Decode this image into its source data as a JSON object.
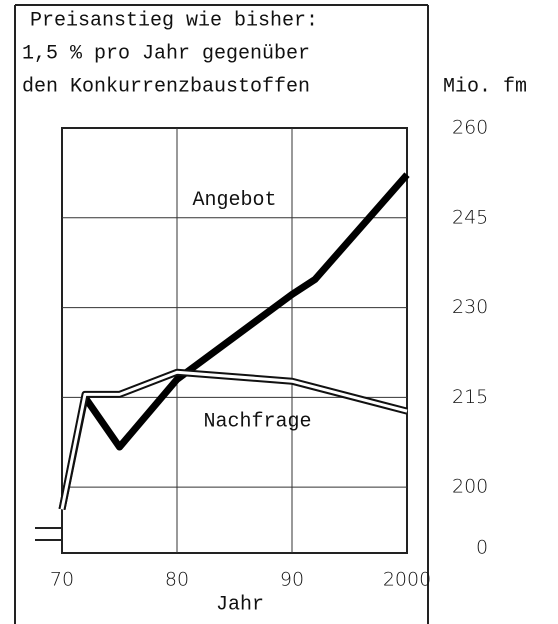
{
  "chart_data": {
    "type": "line",
    "title_lines": [
      "Preisanstieg wie bisher:",
      "1,5 % pro Jahr gegenüber",
      "den Konkurrenzbaustoffen"
    ],
    "y_label": "Mio. fm",
    "x_label": "Jahr",
    "annotations": [
      {
        "text": "Angebot",
        "x": 1985,
        "y": 248
      },
      {
        "text": "Nachfrage",
        "x": 1987,
        "y": 211
      }
    ],
    "series": [
      {
        "name": "Angebot",
        "color": "#000000",
        "line_style": "solid",
        "x": [
          1970,
          1972,
          1975,
          1980,
          1990,
          1992,
          2000
        ],
        "values": [
          196.3,
          215,
          206.7,
          218,
          232.2,
          234.7,
          252.2
        ]
      },
      {
        "name": "Nachfrage",
        "color": "#ffffff",
        "line_style": "double",
        "x": [
          1970,
          1972,
          1975,
          1980,
          1990,
          2000
        ],
        "values": [
          196.3,
          215.5,
          215.5,
          219.2,
          217.7,
          212.7
        ]
      }
    ],
    "xlim": [
      1970,
      2000
    ],
    "xticks": [
      {
        "value": 1970,
        "label": "70"
      },
      {
        "value": 1980,
        "label": "80"
      },
      {
        "value": 1990,
        "label": "90"
      },
      {
        "value": 2000,
        "label": "2000"
      }
    ],
    "ylim": [
      189,
      260
    ],
    "yticks": [
      200,
      215,
      230,
      245,
      260
    ],
    "y_break_tick": 0,
    "grid": true
  }
}
